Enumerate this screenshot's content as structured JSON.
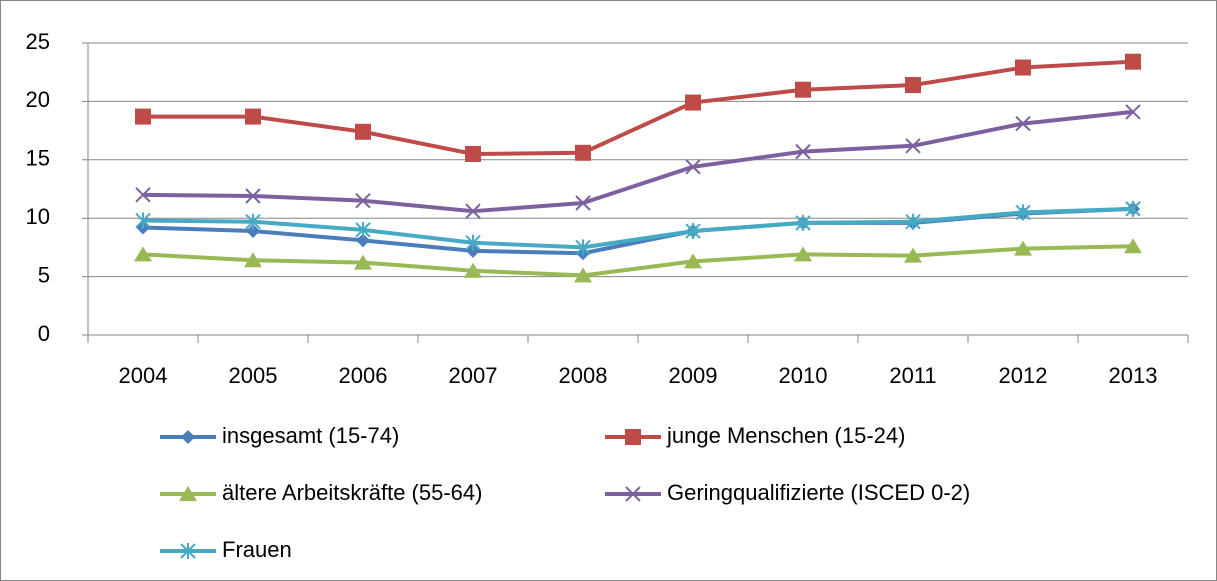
{
  "chart_data": {
    "type": "line",
    "categories": [
      "2004",
      "2005",
      "2006",
      "2007",
      "2008",
      "2009",
      "2010",
      "2011",
      "2012",
      "2013"
    ],
    "series": [
      {
        "name": "insgesamt (15-74)",
        "color": "#4a7ebb",
        "marker": "diamond",
        "values": [
          9.2,
          8.9,
          8.1,
          7.2,
          7.0,
          8.9,
          9.6,
          9.6,
          10.4,
          10.8
        ]
      },
      {
        "name": "junge Menschen (15-24)",
        "color": "#be4b48",
        "marker": "square",
        "values": [
          18.7,
          18.7,
          17.4,
          15.5,
          15.6,
          19.9,
          21.0,
          21.4,
          22.9,
          23.4
        ]
      },
      {
        "name": "ältere Arbeitskräfte (55-64)",
        "color": "#98b954",
        "marker": "triangle",
        "values": [
          6.9,
          6.4,
          6.2,
          5.5,
          5.1,
          6.3,
          6.9,
          6.8,
          7.4,
          7.6
        ]
      },
      {
        "name": "Geringqualifizierte (ISCED 0-2)",
        "color": "#7d60a0",
        "marker": "x",
        "values": [
          12.0,
          11.9,
          11.5,
          10.6,
          11.3,
          14.4,
          15.7,
          16.2,
          18.1,
          19.1
        ]
      },
      {
        "name": "Frauen",
        "color": "#46aac5",
        "marker": "asterisk",
        "values": [
          9.8,
          9.7,
          9.0,
          7.9,
          7.5,
          8.9,
          9.6,
          9.7,
          10.5,
          10.8
        ]
      }
    ],
    "ylim": [
      0,
      25
    ],
    "yticks": [
      0,
      5,
      10,
      15,
      20,
      25
    ],
    "grid": true,
    "legend": "bottom"
  }
}
